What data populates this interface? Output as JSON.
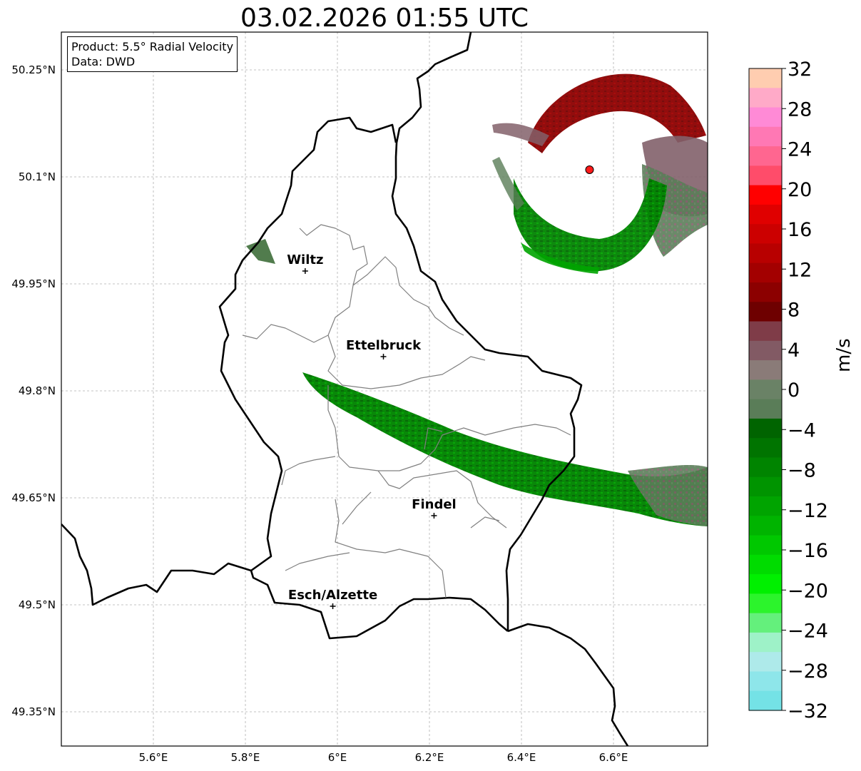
{
  "title": "03.02.2026 01:55 UTC",
  "info": {
    "product": "Product: 5.5° Radial Velocity",
    "data": "Data: DWD"
  },
  "map": {
    "lon_ticks": [
      {
        "value": 5.6,
        "label": "5.6°E"
      },
      {
        "value": 5.8,
        "label": "5.8°E"
      },
      {
        "value": 6.0,
        "label": "6°E"
      },
      {
        "value": 6.2,
        "label": "6.2°E"
      },
      {
        "value": 6.4,
        "label": "6.4°E"
      },
      {
        "value": 6.6,
        "label": "6.6°E"
      }
    ],
    "lat_ticks": [
      {
        "value": 50.25,
        "label": "50.25°N"
      },
      {
        "value": 50.1,
        "label": "50.1°N"
      },
      {
        "value": 49.95,
        "label": "49.95°N"
      },
      {
        "value": 49.8,
        "label": "49.8°N"
      },
      {
        "value": 49.65,
        "label": "49.65°N"
      },
      {
        "value": 49.5,
        "label": "49.5°N"
      },
      {
        "value": 49.35,
        "label": "49.35°N"
      }
    ],
    "grid": true,
    "cities": [
      {
        "name": "Wiltz",
        "lon": 5.93,
        "lat": 49.968
      },
      {
        "name": "Ettelbruck",
        "lon": 6.1,
        "lat": 49.848
      },
      {
        "name": "Findel",
        "lon": 6.21,
        "lat": 49.625
      },
      {
        "name": "Esch/Alzette",
        "lon": 5.99,
        "lat": 49.498
      }
    ],
    "radar_site": {
      "lon": 6.548,
      "lat": 50.11
    }
  },
  "colorbar": {
    "unit": "m/s",
    "ticks": [
      32,
      28,
      24,
      20,
      16,
      12,
      8,
      4,
      0,
      -4,
      -8,
      -12,
      -16,
      -20,
      -24,
      -28,
      -32
    ],
    "tick_labels": [
      "32",
      "28",
      "24",
      "20",
      "16",
      "12",
      "8",
      "4",
      "0",
      "−4",
      "−8",
      "−12",
      "−16",
      "−20",
      "−24",
      "−28",
      "−32"
    ],
    "colors_top_to_bottom": [
      "#ffcdb0",
      "#ffaac8",
      "#ff8ad6",
      "#ff78b4",
      "#ff6690",
      "#ff4c6a",
      "#ff0000",
      "#e00000",
      "#cc0000",
      "#b80000",
      "#a30000",
      "#8c0000",
      "#6e0000",
      "#7f3c48",
      "#825a64",
      "#8a7b78",
      "#6a8266",
      "#5a7d58",
      "#006400",
      "#007400",
      "#008400",
      "#009400",
      "#00a400",
      "#00b400",
      "#00c800",
      "#00dc00",
      "#00f000",
      "#2cf42c",
      "#64f07c",
      "#9ef2c8",
      "#aeeaea",
      "#8ee6ea",
      "#74e2e6"
    ]
  }
}
